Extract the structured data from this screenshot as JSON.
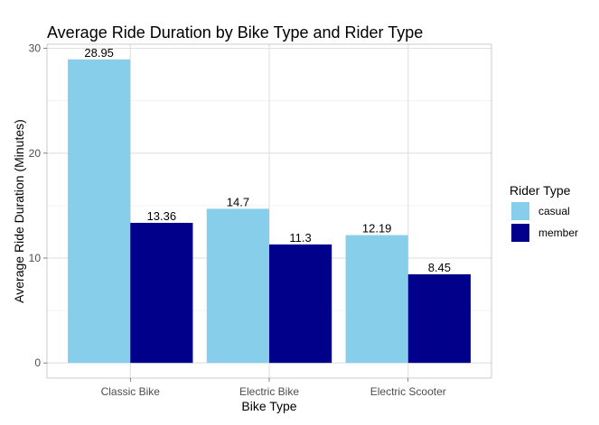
{
  "chart_data": {
    "type": "bar",
    "title": "Average Ride Duration by Bike Type and Rider Type",
    "xlabel": "Bike Type",
    "ylabel": "Average Ride Duration (Minutes)",
    "categories": [
      "Classic Bike",
      "Electric Bike",
      "Electric Scooter"
    ],
    "series": [
      {
        "name": "casual",
        "color": "#87ceeb",
        "values": [
          28.95,
          14.7,
          12.19
        ]
      },
      {
        "name": "member",
        "color": "#00008b",
        "values": [
          13.36,
          11.3,
          8.45
        ]
      }
    ],
    "ylim": [
      -1.4475,
      30.3975
    ],
    "yticks": [
      0,
      10,
      20,
      30
    ],
    "grid": true,
    "legend": {
      "title": "Rider Type",
      "placement": "right"
    }
  }
}
